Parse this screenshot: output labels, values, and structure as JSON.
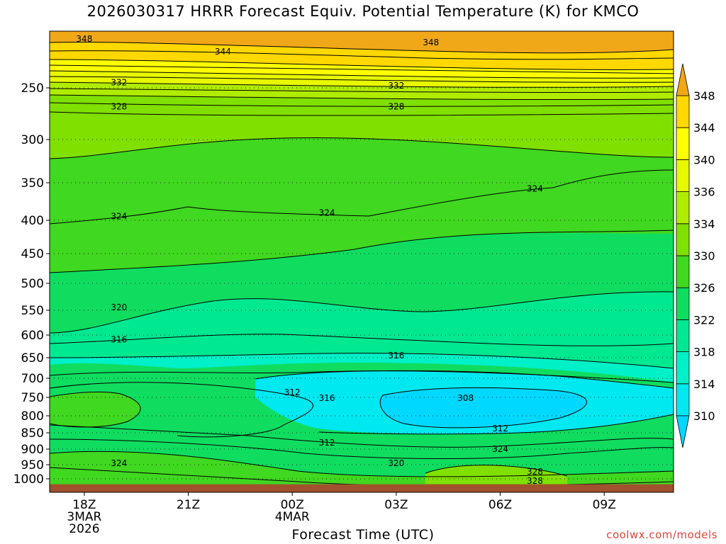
{
  "title": "2026030317 HRRR Forecast Equiv. Potential Temperature (K) for KMCO",
  "credit": "coolwx.com/models",
  "chart_data": {
    "type": "contour",
    "title": "2026030317 HRRR Forecast Equiv. Potential Temperature (K) for KMCO",
    "xlabel": "Forecast Time (UTC)",
    "ylabel": "",
    "y_axis": {
      "unit": "hPa",
      "reversed": true,
      "ticks": [
        250,
        300,
        350,
        400,
        450,
        500,
        550,
        600,
        650,
        700,
        750,
        800,
        850,
        900,
        950,
        1000
      ]
    },
    "x_axis": {
      "ticks": [
        {
          "hours": 1,
          "lines": [
            "18Z",
            "3MAR",
            "2026"
          ]
        },
        {
          "hours": 4,
          "lines": [
            "21Z"
          ]
        },
        {
          "hours": 7,
          "lines": [
            "00Z",
            "4MAR"
          ]
        },
        {
          "hours": 10,
          "lines": [
            "03Z"
          ]
        },
        {
          "hours": 13,
          "lines": [
            "06Z"
          ]
        },
        {
          "hours": 16,
          "lines": [
            "09Z"
          ]
        }
      ],
      "range_hours": [
        0,
        18
      ]
    },
    "colorbar": {
      "unit": "K",
      "levels": [
        310,
        314,
        318,
        322,
        326,
        330,
        334,
        336,
        340,
        344,
        348
      ],
      "extend": "both"
    },
    "contour_labels": [
      {
        "value": "348",
        "x_hours": 1.0,
        "p": 155
      },
      {
        "value": "348",
        "x_hours": 11.0,
        "p": 162
      },
      {
        "value": "344",
        "x_hours": 5.0,
        "p": 180
      },
      {
        "value": "332",
        "x_hours": 2.0,
        "p": 240
      },
      {
        "value": "332",
        "x_hours": 10.0,
        "p": 246
      },
      {
        "value": "328",
        "x_hours": 2.0,
        "p": 268
      },
      {
        "value": "328",
        "x_hours": 10.0,
        "p": 268
      },
      {
        "value": "324",
        "x_hours": 2.0,
        "p": 395
      },
      {
        "value": "324",
        "x_hours": 8.0,
        "p": 390
      },
      {
        "value": "324",
        "x_hours": 14.0,
        "p": 358
      },
      {
        "value": "320",
        "x_hours": 2.0,
        "p": 545
      },
      {
        "value": "316",
        "x_hours": 2.0,
        "p": 610
      },
      {
        "value": "316",
        "x_hours": 10.0,
        "p": 645
      },
      {
        "value": "312",
        "x_hours": 7.0,
        "p": 737
      },
      {
        "value": "316",
        "x_hours": 8.0,
        "p": 752
      },
      {
        "value": "308",
        "x_hours": 12.0,
        "p": 752
      },
      {
        "value": "312",
        "x_hours": 13.0,
        "p": 838
      },
      {
        "value": "312",
        "x_hours": 8.0,
        "p": 880
      },
      {
        "value": "324",
        "x_hours": 2.0,
        "p": 945
      },
      {
        "value": "324",
        "x_hours": 13.0,
        "p": 900
      },
      {
        "value": "320",
        "x_hours": 10.0,
        "p": 945
      },
      {
        "value": "328",
        "x_hours": 14.0,
        "p": 975
      },
      {
        "value": "328",
        "x_hours": 14.0,
        "p": 1005
      }
    ],
    "colors": {
      "ground": "#a0522d",
      "gridline": "#000000",
      "lt310": "#00d8ff",
      "310": "#00e8f0",
      "314": "#00f0c8",
      "318": "#00e890",
      "322": "#10dd60",
      "326": "#40d820",
      "330": "#80e000",
      "334": "#b0ec00",
      "336": "#e8f800",
      "340": "#ffff00",
      "344": "#ffd800",
      "348": "#f0a818"
    }
  }
}
